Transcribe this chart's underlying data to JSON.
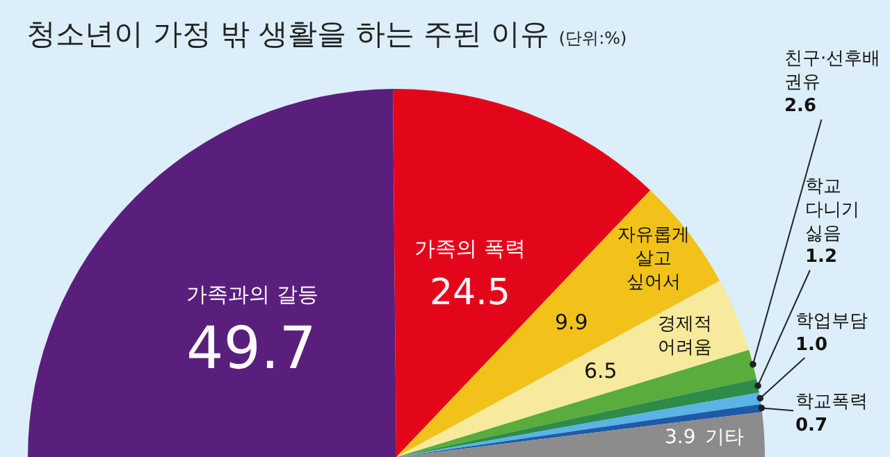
{
  "chart_data": {
    "type": "pie",
    "title": "청소년이 가정 밖 생활을 하는 주된 이유",
    "subtitle": "(단위:%)",
    "categories": [
      "가족과의 갈등",
      "가족의 폭력",
      "자유롭게 살고 싶어서",
      "경제적 어려움",
      "친구·선후배 권유",
      "학교 다니기 싫음",
      "학업부담",
      "학교폭력",
      "기타"
    ],
    "values": [
      49.7,
      24.5,
      9.9,
      6.5,
      2.6,
      1.2,
      1.0,
      0.7,
      3.9
    ],
    "value_labels": [
      "49.7",
      "24.5",
      "9.9",
      "6.5",
      "2.6",
      "1.2",
      "1.0",
      "0.7",
      "3.9"
    ],
    "colors": [
      "#5a1f7c",
      "#e3061b",
      "#f2c21b",
      "#f7ea9c",
      "#5aac3c",
      "#2e8b4a",
      "#5ab4e6",
      "#1f5aa8",
      "#8c8c8c"
    ]
  }
}
